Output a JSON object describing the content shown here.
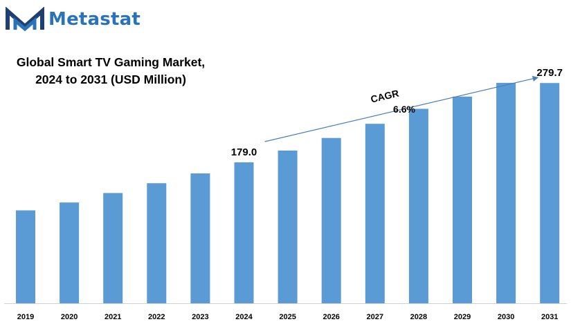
{
  "brand": {
    "name": "Metastat",
    "logo_icon": "metastat-m-logo-icon",
    "colors": {
      "primary": "#2a73b8",
      "dark": "#1f3f6e"
    }
  },
  "title": {
    "line1": "Global Smart TV Gaming Market,",
    "line2": "2024 to 2031 (USD Million)"
  },
  "chart_data": {
    "type": "bar",
    "title": "Global Smart TV Gaming Market, 2024 to 2031 (USD Million)",
    "categories": [
      "2019",
      "2020",
      "2021",
      "2022",
      "2023",
      "2024",
      "2025",
      "2026",
      "2027",
      "2028",
      "2029",
      "2030",
      "2031"
    ],
    "values": [
      118.0,
      128.0,
      140.0,
      152.5,
      165.0,
      179.0,
      194.0,
      210.0,
      228.0,
      247.0,
      262.5,
      280.0,
      279.7
    ],
    "data_labels": [
      {
        "category": "2024",
        "text": "179.0"
      },
      {
        "category": "2031",
        "text": "279.7"
      }
    ],
    "annotation": {
      "label_line1": "CAGR",
      "label_line2": "6.6%",
      "from": "2024",
      "to": "2031",
      "style": "arrow"
    },
    "bar_color": "#5b9bd5",
    "ylim": [
      0,
      315
    ],
    "grid": false,
    "legend": "none",
    "xlabel": "",
    "ylabel": ""
  }
}
